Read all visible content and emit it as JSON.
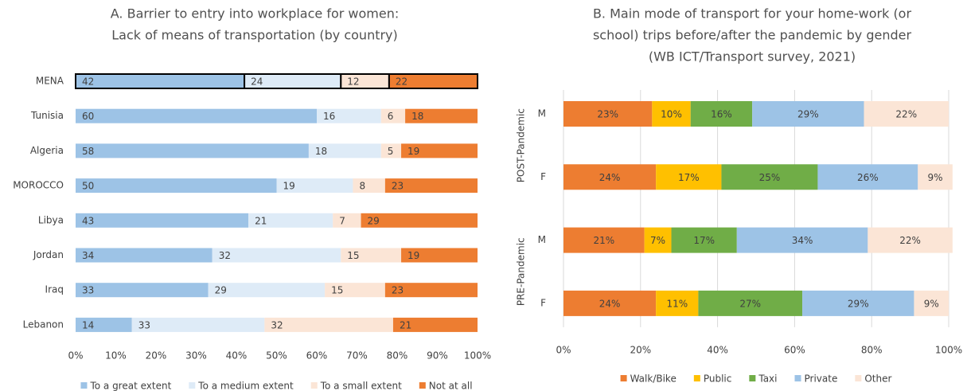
{
  "chart_data": [
    {
      "type": "stacked-barh",
      "title": [
        "A. Barrier to entry into workplace for women:",
        "Lack of means of transportation (by country)"
      ],
      "categories": [
        "MENA",
        "Tunisia",
        "Algeria",
        "MOROCCO",
        "Libya",
        "Jordan",
        "Iraq",
        "Lebanon"
      ],
      "highlight": "MENA",
      "series": [
        {
          "name": "To a great extent",
          "color": "#9dc3e6",
          "values": [
            42,
            60,
            58,
            50,
            43,
            34,
            33,
            14
          ]
        },
        {
          "name": "To a medium extent",
          "color": "#deebf7",
          "values": [
            24,
            16,
            18,
            19,
            21,
            32,
            29,
            33
          ]
        },
        {
          "name": "To a small extent",
          "color": "#fbe5d6",
          "values": [
            12,
            6,
            5,
            8,
            7,
            15,
            15,
            32
          ]
        },
        {
          "name": "Not at all",
          "color": "#ed7d31",
          "values": [
            22,
            18,
            19,
            23,
            29,
            19,
            23,
            21
          ]
        }
      ],
      "xlim": [
        0,
        100
      ],
      "xticks": [
        {
          "value": 0,
          "label": "0%"
        },
        {
          "value": 10,
          "label": "10%"
        },
        {
          "value": 20,
          "label": "20%"
        },
        {
          "value": 30,
          "label": "30%"
        },
        {
          "value": 40,
          "label": "40%"
        },
        {
          "value": 50,
          "label": "50%"
        },
        {
          "value": 60,
          "label": "60%"
        },
        {
          "value": 70,
          "label": "70%"
        },
        {
          "value": 80,
          "label": "80%"
        },
        {
          "value": 90,
          "label": "90%"
        },
        {
          "value": 100,
          "label": "100%"
        }
      ],
      "grid": false
    },
    {
      "type": "stacked-barh",
      "title": [
        "B. Main mode of transport for your home-work (or",
        "school) trips before/after the pandemic by gender",
        "(WB ICT/Transport survey, 2021)"
      ],
      "categories": [
        "M",
        "F",
        "M",
        "F"
      ],
      "groups": [
        "POST-Pandemic",
        "PRE-Pandemic"
      ],
      "series": [
        {
          "name": "Walk/Bike",
          "color": "#ed7d31",
          "values": [
            23,
            24,
            21,
            24
          ],
          "value_labels": [
            "23%",
            "24%",
            "21%",
            "24%"
          ]
        },
        {
          "name": "Public",
          "color": "#ffc000",
          "values": [
            10,
            17,
            7,
            11
          ],
          "value_labels": [
            "10%",
            "17%",
            "7%",
            "11%"
          ]
        },
        {
          "name": "Taxi",
          "color": "#70ad47",
          "values": [
            16,
            25,
            17,
            27
          ],
          "value_labels": [
            "16%",
            "25%",
            "17%",
            "27%"
          ]
        },
        {
          "name": "Private",
          "color": "#9dc3e6",
          "values": [
            29,
            26,
            34,
            29
          ],
          "value_labels": [
            "29%",
            "26%",
            "34%",
            "29%"
          ]
        },
        {
          "name": "Other",
          "color": "#fbe5d6",
          "values": [
            22,
            9,
            22,
            9
          ],
          "value_labels": [
            "22%",
            "9%",
            "22%",
            "9%"
          ]
        }
      ],
      "xlim": [
        0,
        100
      ],
      "xticks": [
        {
          "value": 0,
          "label": "0%"
        },
        {
          "value": 20,
          "label": "20%"
        },
        {
          "value": 40,
          "label": "40%"
        },
        {
          "value": 60,
          "label": "60%"
        },
        {
          "value": 80,
          "label": "80%"
        },
        {
          "value": 100,
          "label": "100%"
        }
      ],
      "grid": true
    }
  ]
}
